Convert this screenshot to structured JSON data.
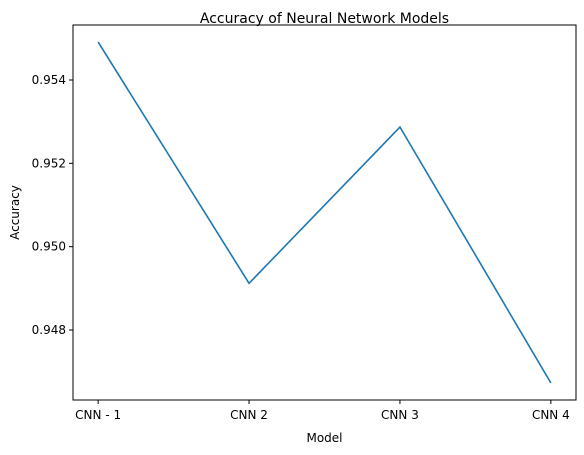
{
  "chart_data": {
    "type": "line",
    "title": "Accuracy of Neural Network Models",
    "xlabel": "Model",
    "ylabel": "Accuracy",
    "categories": [
      "CNN - 1",
      "CNN 2",
      "CNN 3",
      "CNN 4"
    ],
    "series": [
      {
        "values": [
          0.95491,
          0.94912,
          0.95287,
          0.94673
        ],
        "color": "#1f77b4"
      }
    ],
    "ylim": [
      0.94632,
      0.95532
    ],
    "yticks": [
      0.948,
      0.95,
      0.952,
      0.954
    ],
    "ytick_labels": [
      "0.948",
      "0.950",
      "0.952",
      "0.954"
    ],
    "grid": false,
    "legend": "none"
  }
}
